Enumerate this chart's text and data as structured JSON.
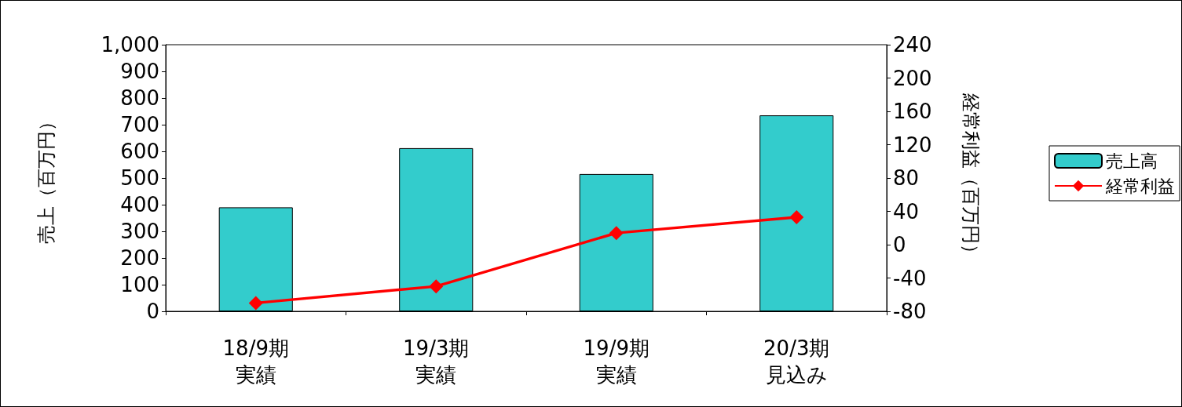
{
  "chart_data": {
    "type": "bar",
    "ylabel": "売上（百万円）",
    "y2label": "経常利益（百万円）",
    "categories": [
      "18/9期実績",
      "19/3期実績",
      "19/9期実績",
      "20/3期見込み"
    ],
    "series": [
      {
        "name": "売上高",
        "color": "#33cccc",
        "values": [
          390,
          612,
          515,
          735
        ]
      },
      {
        "name": "経常利益",
        "type": "line",
        "axis": "y2",
        "color": "#ff0000",
        "marker": "diamond",
        "values": [
          -70,
          -50,
          14,
          33
        ]
      }
    ],
    "ylim": [
      0,
      1000
    ],
    "yticks": [
      0,
      100,
      200,
      300,
      400,
      500,
      600,
      700,
      800,
      900,
      {
        "value": 1000,
        "label": "1,000"
      }
    ],
    "y2lim": [
      -80,
      240
    ],
    "y2ticks": [
      -80,
      -40,
      0,
      40,
      80,
      120,
      160,
      200,
      240
    ],
    "grid": false,
    "legend": "right"
  }
}
